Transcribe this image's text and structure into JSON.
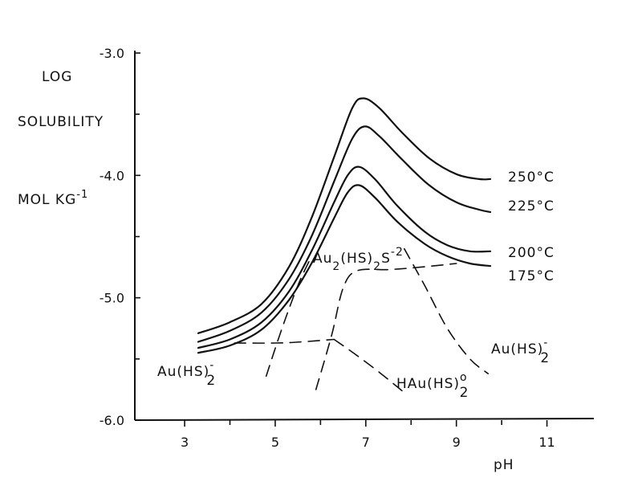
{
  "chart_data": {
    "type": "line",
    "ylabel_lines": [
      "LOG",
      "SOLUBILITY",
      "MOL KG"
    ],
    "ylabel_superscript": "-1",
    "xlabel": "pH",
    "xlim": [
      1.9,
      12.0
    ],
    "ylim": [
      -6.0,
      -3.0
    ],
    "x_ticks": [
      {
        "value": 3,
        "label": "3"
      },
      {
        "value": 5,
        "label": "5"
      },
      {
        "value": 7,
        "label": "7"
      },
      {
        "value": 9,
        "label": "9"
      },
      {
        "value": 11,
        "label": "11"
      }
    ],
    "x_minor_ticks": [
      4,
      6,
      8,
      10
    ],
    "y_ticks": [
      {
        "value": -3.0,
        "label": "-3.0"
      },
      {
        "value": -4.0,
        "label": "-4.0"
      },
      {
        "value": -5.0,
        "label": "-5.0"
      },
      {
        "value": -6.0,
        "label": "-6.0"
      }
    ],
    "y_minor_ticks": [
      -3.5,
      -4.5,
      -5.5
    ],
    "grid": false,
    "series": [
      {
        "name": "250°C",
        "style": "solid",
        "points": [
          [
            3.3,
            -5.29
          ],
          [
            4.0,
            -5.2
          ],
          [
            4.7,
            -5.05
          ],
          [
            5.3,
            -4.75
          ],
          [
            5.8,
            -4.35
          ],
          [
            6.3,
            -3.85
          ],
          [
            6.7,
            -3.45
          ],
          [
            6.95,
            -3.37
          ],
          [
            7.3,
            -3.45
          ],
          [
            7.8,
            -3.65
          ],
          [
            8.4,
            -3.86
          ],
          [
            9.0,
            -3.99
          ],
          [
            9.5,
            -4.03
          ],
          [
            9.75,
            -4.03
          ]
        ]
      },
      {
        "name": "225°C",
        "style": "solid",
        "points": [
          [
            3.3,
            -5.36
          ],
          [
            4.0,
            -5.27
          ],
          [
            4.7,
            -5.12
          ],
          [
            5.3,
            -4.85
          ],
          [
            5.8,
            -4.5
          ],
          [
            6.3,
            -4.05
          ],
          [
            6.7,
            -3.7
          ],
          [
            6.98,
            -3.6
          ],
          [
            7.3,
            -3.68
          ],
          [
            7.8,
            -3.87
          ],
          [
            8.4,
            -4.08
          ],
          [
            9.0,
            -4.22
          ],
          [
            9.5,
            -4.28
          ],
          [
            9.75,
            -4.3
          ]
        ]
      },
      {
        "name": "200°C",
        "style": "solid",
        "points": [
          [
            3.3,
            -5.41
          ],
          [
            4.0,
            -5.34
          ],
          [
            4.7,
            -5.2
          ],
          [
            5.3,
            -4.95
          ],
          [
            5.8,
            -4.62
          ],
          [
            6.3,
            -4.22
          ],
          [
            6.6,
            -4.0
          ],
          [
            6.85,
            -3.93
          ],
          [
            7.2,
            -4.03
          ],
          [
            7.7,
            -4.25
          ],
          [
            8.3,
            -4.46
          ],
          [
            8.8,
            -4.57
          ],
          [
            9.3,
            -4.62
          ],
          [
            9.75,
            -4.62
          ]
        ]
      },
      {
        "name": "175°C",
        "style": "solid",
        "points": [
          [
            3.3,
            -5.45
          ],
          [
            4.0,
            -5.39
          ],
          [
            4.7,
            -5.26
          ],
          [
            5.3,
            -5.02
          ],
          [
            5.8,
            -4.72
          ],
          [
            6.3,
            -4.35
          ],
          [
            6.6,
            -4.14
          ],
          [
            6.85,
            -4.08
          ],
          [
            7.2,
            -4.18
          ],
          [
            7.7,
            -4.38
          ],
          [
            8.3,
            -4.56
          ],
          [
            8.8,
            -4.66
          ],
          [
            9.3,
            -4.72
          ],
          [
            9.75,
            -4.74
          ]
        ]
      },
      {
        "name": "",
        "style": "dashed",
        "points": [
          [
            4.1,
            -5.37
          ],
          [
            5.0,
            -5.37
          ],
          [
            5.6,
            -5.36
          ],
          [
            6.3,
            -5.34
          ]
        ]
      },
      {
        "name": "",
        "style": "dashed",
        "points": [
          [
            6.3,
            -5.34
          ],
          [
            6.8,
            -5.47
          ],
          [
            7.3,
            -5.61
          ],
          [
            7.8,
            -5.76
          ]
        ]
      },
      {
        "name": "",
        "style": "dashed",
        "points": [
          [
            4.8,
            -5.64
          ],
          [
            5.15,
            -5.25
          ],
          [
            5.5,
            -4.9
          ],
          [
            5.75,
            -4.7
          ]
        ]
      },
      {
        "name": "",
        "style": "dashed",
        "points": [
          [
            5.9,
            -5.75
          ],
          [
            6.25,
            -5.3
          ],
          [
            6.5,
            -4.92
          ],
          [
            6.8,
            -4.78
          ],
          [
            7.5,
            -4.77
          ],
          [
            8.2,
            -4.75
          ],
          [
            9.0,
            -4.72
          ]
        ]
      },
      {
        "name": "",
        "style": "dashed",
        "points": [
          [
            7.85,
            -4.6
          ],
          [
            8.3,
            -4.9
          ],
          [
            8.8,
            -5.25
          ],
          [
            9.3,
            -5.5
          ],
          [
            9.7,
            -5.62
          ]
        ]
      }
    ],
    "curve_labels": [
      {
        "text": "250°C",
        "series": "250°C",
        "position": "right"
      },
      {
        "text": "225°C",
        "series": "225°C",
        "position": "right"
      },
      {
        "text": "200°C",
        "series": "200°C",
        "position": "right"
      },
      {
        "text": "175°C",
        "series": "175°C",
        "position": "right"
      }
    ],
    "species_labels": [
      {
        "main": "Au(HS)",
        "sub": "2",
        "sup": "-",
        "where": "lower-left"
      },
      {
        "main": "Au(HS)",
        "sub": "2",
        "sup": "-",
        "where": "right"
      },
      {
        "main": "HAu(HS)",
        "sub": "2",
        "sup": "o",
        "where": "bottom-middle"
      },
      {
        "main": "Au",
        "sub": "2",
        "mid": "(HS)",
        "sub2": "2",
        "mid2": "S",
        "sup": "-2",
        "where": "center"
      }
    ]
  }
}
